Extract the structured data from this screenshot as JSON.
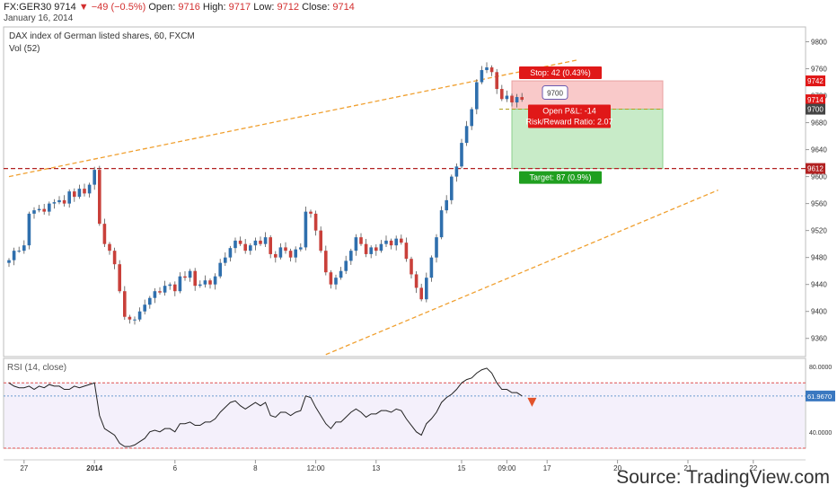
{
  "header": {
    "symbol": "FX:GER30",
    "last": "9714",
    "change": "▼ −49 (−0.5%)",
    "open_label": "Open:",
    "open": "9716",
    "high_label": "High:",
    "high": "9717",
    "low_label": "Low:",
    "low": "9712",
    "close_label": "Close:",
    "close": "9714",
    "date": "January 16, 2014"
  },
  "chart_title": "DAX index of German listed shares, 60, FXCM",
  "vol_label": "Vol (52)",
  "rsi_label": "RSI (14, close)",
  "source": "Source: TradingView.com",
  "colors": {
    "up": "#2f6fad",
    "down": "#c9403a",
    "trend": "#f0a030",
    "stop_zone": "#f9c9c9",
    "target_zone": "#c8ebc8",
    "level": "#b22222",
    "badge_red": "#e01818",
    "badge_green": "#1f9f1f"
  },
  "chart_data": {
    "type": "candlestick",
    "y_ticks": [
      9800,
      9760,
      9720,
      9680,
      9640,
      9600,
      9560,
      9520,
      9480,
      9440,
      9400,
      9360
    ],
    "ylim": [
      9333,
      9822
    ],
    "x_ticks": [
      "27",
      "2014",
      "6",
      "8",
      "12:00",
      "13",
      "15",
      "09:00",
      "17",
      "20",
      "21",
      "22"
    ],
    "x_tick_bars": [
      3,
      17,
      33,
      49,
      61,
      73,
      90,
      99,
      107,
      121,
      135,
      148
    ],
    "close_series": [
      9476,
      9490,
      9490,
      9498,
      9545,
      9550,
      9552,
      9548,
      9560,
      9562,
      9565,
      9560,
      9578,
      9570,
      9582,
      9575,
      9588,
      9610,
      9530,
      9500,
      9490,
      9470,
      9430,
      9392,
      9388,
      9388,
      9400,
      9410,
      9420,
      9430,
      9428,
      9438,
      9440,
      9430,
      9452,
      9450,
      9460,
      9438,
      9440,
      9446,
      9440,
      9452,
      9472,
      9480,
      9494,
      9505,
      9500,
      9490,
      9498,
      9505,
      9500,
      9510,
      9485,
      9480,
      9495,
      9490,
      9480,
      9492,
      9495,
      9548,
      9545,
      9520,
      9490,
      9458,
      9440,
      9450,
      9460,
      9475,
      9490,
      9510,
      9500,
      9485,
      9495,
      9490,
      9500,
      9505,
      9498,
      9508,
      9502,
      9478,
      9455,
      9435,
      9418,
      9450,
      9480,
      9510,
      9550,
      9565,
      9600,
      9615,
      9650,
      9675,
      9700,
      9740,
      9758,
      9762,
      9755,
      9730,
      9715,
      9720,
      9710,
      9718,
      9714
    ],
    "candle_count": 103,
    "open": 9716,
    "high": 9717,
    "low": 9712,
    "close": 9714,
    "price_labels": [
      {
        "value": 9742,
        "text": "9742",
        "kind": "stop"
      },
      {
        "value": 9714,
        "text": "9714",
        "kind": "last"
      },
      {
        "value": 9700,
        "text": "9700",
        "kind": "entry"
      },
      {
        "value": 9612,
        "text": "9612",
        "kind": "level"
      }
    ],
    "levels": {
      "entry": 9700,
      "stop": 9742,
      "target": 9612,
      "support": 9612
    },
    "position": {
      "stop_text": "Stop: 42 (0.43%)",
      "pnl_text": "Open P&L: -14",
      "rr_text": "Risk/Reward Ratio: 2.07",
      "target_text": "Target: 87 (0.9%)",
      "entry_bubble": "9700",
      "x_start_bar": 100,
      "x_end_bar": 130
    },
    "trendlines": [
      {
        "from_bar": 0,
        "from_value": 9600,
        "to_bar": 113,
        "to_value": 9773
      },
      {
        "from_bar": 63,
        "from_value": 9336,
        "to_bar": 141,
        "to_value": 9580
      }
    ],
    "rsi": {
      "ylim": [
        30,
        85
      ],
      "y_ticks": [
        80,
        40
      ],
      "y_tick_labels": [
        "80.0000",
        "40.0000"
      ],
      "upper_band": 70,
      "lower_band": 30,
      "last_value": 61.967,
      "last_label": "61.9670",
      "values": [
        70,
        68,
        67,
        67,
        68,
        66,
        68,
        67,
        69,
        68,
        68,
        66,
        66,
        68,
        67,
        68,
        69,
        70,
        50,
        42,
        40,
        38,
        33,
        31,
        31,
        32,
        34,
        36,
        40,
        41,
        40,
        42,
        42,
        40,
        45,
        45,
        46,
        44,
        44,
        46,
        46,
        48,
        52,
        55,
        58,
        59,
        56,
        54,
        56,
        58,
        56,
        58,
        50,
        49,
        52,
        52,
        50,
        52,
        53,
        62,
        61,
        55,
        50,
        45,
        42,
        46,
        46,
        49,
        52,
        54,
        52,
        49,
        51,
        51,
        53,
        53,
        52,
        54,
        53,
        48,
        44,
        40,
        38,
        45,
        48,
        52,
        58,
        61,
        63,
        66,
        70,
        72,
        73,
        76,
        78,
        79,
        76,
        70,
        66,
        66,
        64,
        64,
        62
      ]
    }
  }
}
